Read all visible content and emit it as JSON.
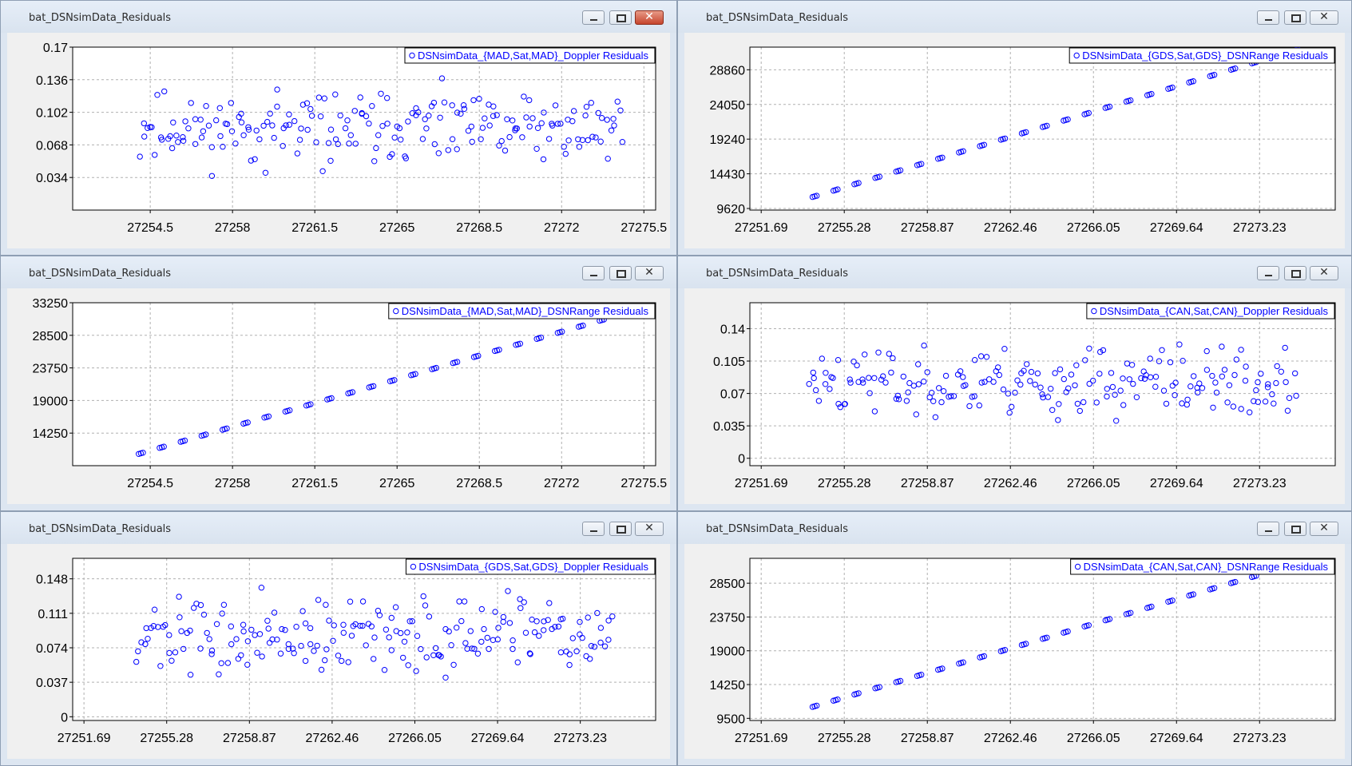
{
  "window_title": "bat_DSNsimData_Residuals",
  "colors": {
    "marker": "#0000ff",
    "grid": "#b0b0b0",
    "plot_bg": "#ffffff"
  },
  "icons": {
    "minimize": "minimize-icon",
    "maximize": "maximize-icon",
    "close": "close-icon"
  },
  "chart_data": [
    {
      "id": "p1",
      "type": "scatter",
      "grid": true,
      "legend_position": "top-right",
      "legend": "DSNsimData_{MAD,Sat,MAD}_Doppler Residuals",
      "xlim": [
        27251.2,
        27276.0
      ],
      "ylim": [
        0.0,
        0.17
      ],
      "xticks": [
        27254.5,
        27258,
        27261.5,
        27265,
        27268.5,
        27272,
        27275.5
      ],
      "xtick_labels": [
        "27254.5",
        "27258",
        "27261.5",
        "27265",
        "27268.5",
        "27272",
        "27275.5"
      ],
      "yticks": [
        0.034,
        0.068,
        0.102,
        0.136,
        0.17
      ],
      "ytick_labels": [
        "0.034",
        "0.068",
        "0.102",
        "0.136",
        "0.17"
      ],
      "series": [
        {
          "pattern": "noise",
          "x_range": [
            27254.1,
            27274.6
          ],
          "count": 200,
          "y_center": 0.085,
          "y_spread": 0.055,
          "y_min": 0.02,
          "y_max": 0.165,
          "seed": 11
        }
      ]
    },
    {
      "id": "p2",
      "type": "scatter",
      "grid": true,
      "legend_position": "top-right",
      "legend": "DSNsimData_{GDS,Sat,GDS}_DSNRange Residuals",
      "xlim": [
        27251.2,
        27276.5
      ],
      "ylim": [
        9400,
        32000
      ],
      "xticks": [
        27251.69,
        27255.28,
        27258.87,
        27262.46,
        27266.05,
        27269.64,
        27273.23
      ],
      "xtick_labels": [
        "27251.69",
        "27255.28",
        "27258.87",
        "27262.46",
        "27266.05",
        "27269.64",
        "27273.23"
      ],
      "yticks": [
        9620,
        14430,
        19240,
        24050,
        28860
      ],
      "ytick_labels": [
        "9620",
        "14430",
        "19240",
        "24050",
        "28860"
      ],
      "series": [
        {
          "pattern": "linear",
          "x_range": [
            27254.0,
            27274.8
          ],
          "y_range": [
            11300,
            31600
          ],
          "count": 72
        }
      ]
    },
    {
      "id": "p3",
      "type": "scatter",
      "grid": true,
      "legend_position": "top-right",
      "legend": "DSNsimData_{MAD,Sat,MAD}_DSNRange Residuals",
      "xlim": [
        27251.2,
        27276.0
      ],
      "ylim": [
        9500,
        33250
      ],
      "xticks": [
        27254.5,
        27258,
        27261.5,
        27265,
        27268.5,
        27272,
        27275.5
      ],
      "xtick_labels": [
        "27254.5",
        "27258",
        "27261.5",
        "27265",
        "27268.5",
        "27272",
        "27275.5"
      ],
      "yticks": [
        14250,
        19000,
        23750,
        28500,
        33250
      ],
      "ytick_labels": [
        "14250",
        "19000",
        "23750",
        "28500",
        "33250"
      ],
      "series": [
        {
          "pattern": "linear",
          "x_range": [
            27254.1,
            27274.6
          ],
          "y_range": [
            11300,
            31600
          ],
          "count": 72
        }
      ]
    },
    {
      "id": "p4",
      "type": "scatter",
      "grid": true,
      "legend_position": "top-right",
      "legend": "DSNsimData_{CAN,Sat,CAN}_Doppler Residuals",
      "xlim": [
        27251.2,
        27276.5
      ],
      "ylim": [
        -0.008,
        0.168
      ],
      "xticks": [
        27251.69,
        27255.28,
        27258.87,
        27262.46,
        27266.05,
        27269.64,
        27273.23
      ],
      "xtick_labels": [
        "27251.69",
        "27255.28",
        "27258.87",
        "27262.46",
        "27266.05",
        "27269.64",
        "27273.23"
      ],
      "yticks": [
        0,
        0.035,
        0.07,
        0.105,
        0.14
      ],
      "ytick_labels": [
        "0",
        "0.035",
        "0.07",
        "0.105",
        "0.14"
      ],
      "series": [
        {
          "pattern": "noise",
          "x_range": [
            27253.8,
            27274.8
          ],
          "count": 200,
          "y_center": 0.082,
          "y_spread": 0.055,
          "y_min": 0.005,
          "y_max": 0.15,
          "seed": 23
        }
      ]
    },
    {
      "id": "p5",
      "type": "scatter",
      "grid": true,
      "legend_position": "top-right",
      "legend": "DSNsimData_{GDS,Sat,GDS}_Doppler Residuals",
      "xlim": [
        27251.2,
        27276.5
      ],
      "ylim": [
        -0.004,
        0.17
      ],
      "xticks": [
        27251.69,
        27255.28,
        27258.87,
        27262.46,
        27266.05,
        27269.64,
        27273.23
      ],
      "xtick_labels": [
        "27251.69",
        "27255.28",
        "27258.87",
        "27262.46",
        "27266.05",
        "27269.64",
        "27273.23"
      ],
      "yticks": [
        0,
        0.037,
        0.074,
        0.111,
        0.148
      ],
      "ytick_labels": [
        "0",
        "0.037",
        "0.074",
        "0.111",
        "0.148"
      ],
      "series": [
        {
          "pattern": "noise",
          "x_range": [
            27254.0,
            27274.6
          ],
          "count": 200,
          "y_center": 0.085,
          "y_spread": 0.058,
          "y_min": 0.006,
          "y_max": 0.162,
          "seed": 37
        }
      ]
    },
    {
      "id": "p6",
      "type": "scatter",
      "grid": true,
      "legend_position": "top-right",
      "legend": "DSNsimData_{CAN,Sat,CAN}_DSNRange Residuals",
      "xlim": [
        27251.2,
        27276.5
      ],
      "ylim": [
        9200,
        32000
      ],
      "xticks": [
        27251.69,
        27255.28,
        27258.87,
        27262.46,
        27266.05,
        27269.64,
        27273.23
      ],
      "xtick_labels": [
        "27251.69",
        "27255.28",
        "27258.87",
        "27262.46",
        "27266.05",
        "27269.64",
        "27273.23"
      ],
      "yticks": [
        9500,
        14250,
        19000,
        23750,
        28500
      ],
      "ytick_labels": [
        "9500",
        "14250",
        "19000",
        "23750",
        "28500"
      ],
      "series": [
        {
          "pattern": "linear",
          "x_range": [
            27254.0,
            27274.8
          ],
          "y_range": [
            11200,
            31200
          ],
          "count": 72
        }
      ]
    }
  ]
}
